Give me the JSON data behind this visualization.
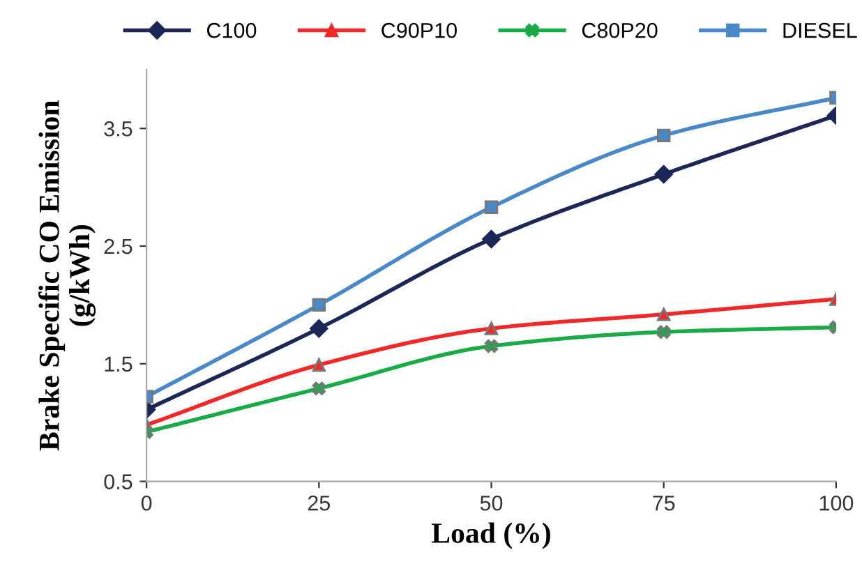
{
  "chart_data": {
    "type": "line",
    "xlabel": "Load (%)",
    "ylabel": "Brake Specific CO Emission\n(g/kWh)",
    "x": [
      0,
      25,
      50,
      75,
      100
    ],
    "series": [
      {
        "name": "C100",
        "color": "#1c2757",
        "marker": "diamond",
        "values": [
          1.11,
          1.8,
          2.56,
          3.11,
          3.61
        ]
      },
      {
        "name": "C90P10",
        "color": "#f02828",
        "marker": "triangle",
        "values": [
          0.98,
          1.49,
          1.8,
          1.92,
          2.05
        ]
      },
      {
        "name": "C80P20",
        "color": "#1aaa48",
        "marker": "cross",
        "values": [
          0.92,
          1.29,
          1.65,
          1.77,
          1.81
        ]
      },
      {
        "name": "DIESEL",
        "color": "#4a88c8",
        "marker": "square",
        "values": [
          1.22,
          2.0,
          2.83,
          3.44,
          3.76
        ]
      }
    ],
    "xlim": [
      0,
      100
    ],
    "xticks": [
      0,
      25,
      50,
      75,
      100
    ],
    "ylim": [
      0.5,
      4.0
    ],
    "yticks": [
      0.5,
      1.5,
      2.5,
      3.5
    ],
    "grid": false,
    "legend": "top",
    "line_style": "solid"
  }
}
